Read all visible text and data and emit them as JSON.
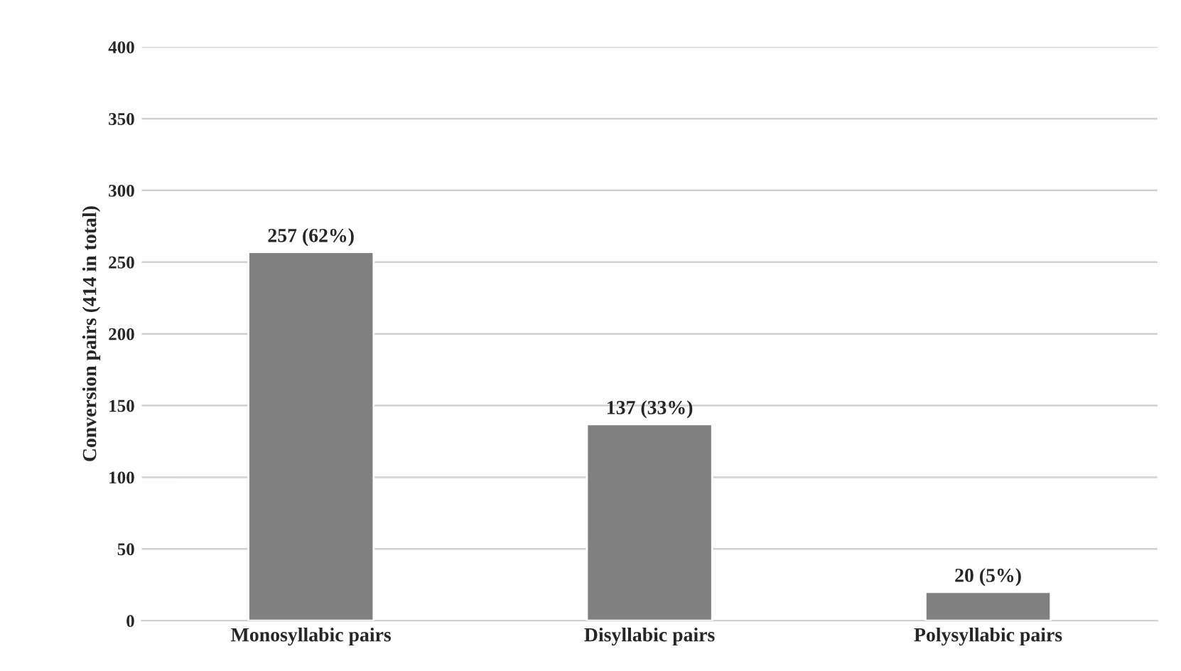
{
  "chart_data": {
    "type": "bar",
    "ylabel": "Conversion pairs (414 in total)",
    "categories": [
      "Monosyllabic pairs",
      "Disyllabic pairs",
      "Polysyllabic pairs"
    ],
    "values": [
      257,
      137,
      20
    ],
    "value_labels": [
      "257 (62%)",
      "137 (33%)",
      "20 (5%)"
    ],
    "color": "#808080",
    "ylim": [
      0,
      400
    ],
    "yticks": [
      0,
      50,
      100,
      150,
      200,
      250,
      300,
      350,
      400
    ],
    "grid": "y"
  }
}
